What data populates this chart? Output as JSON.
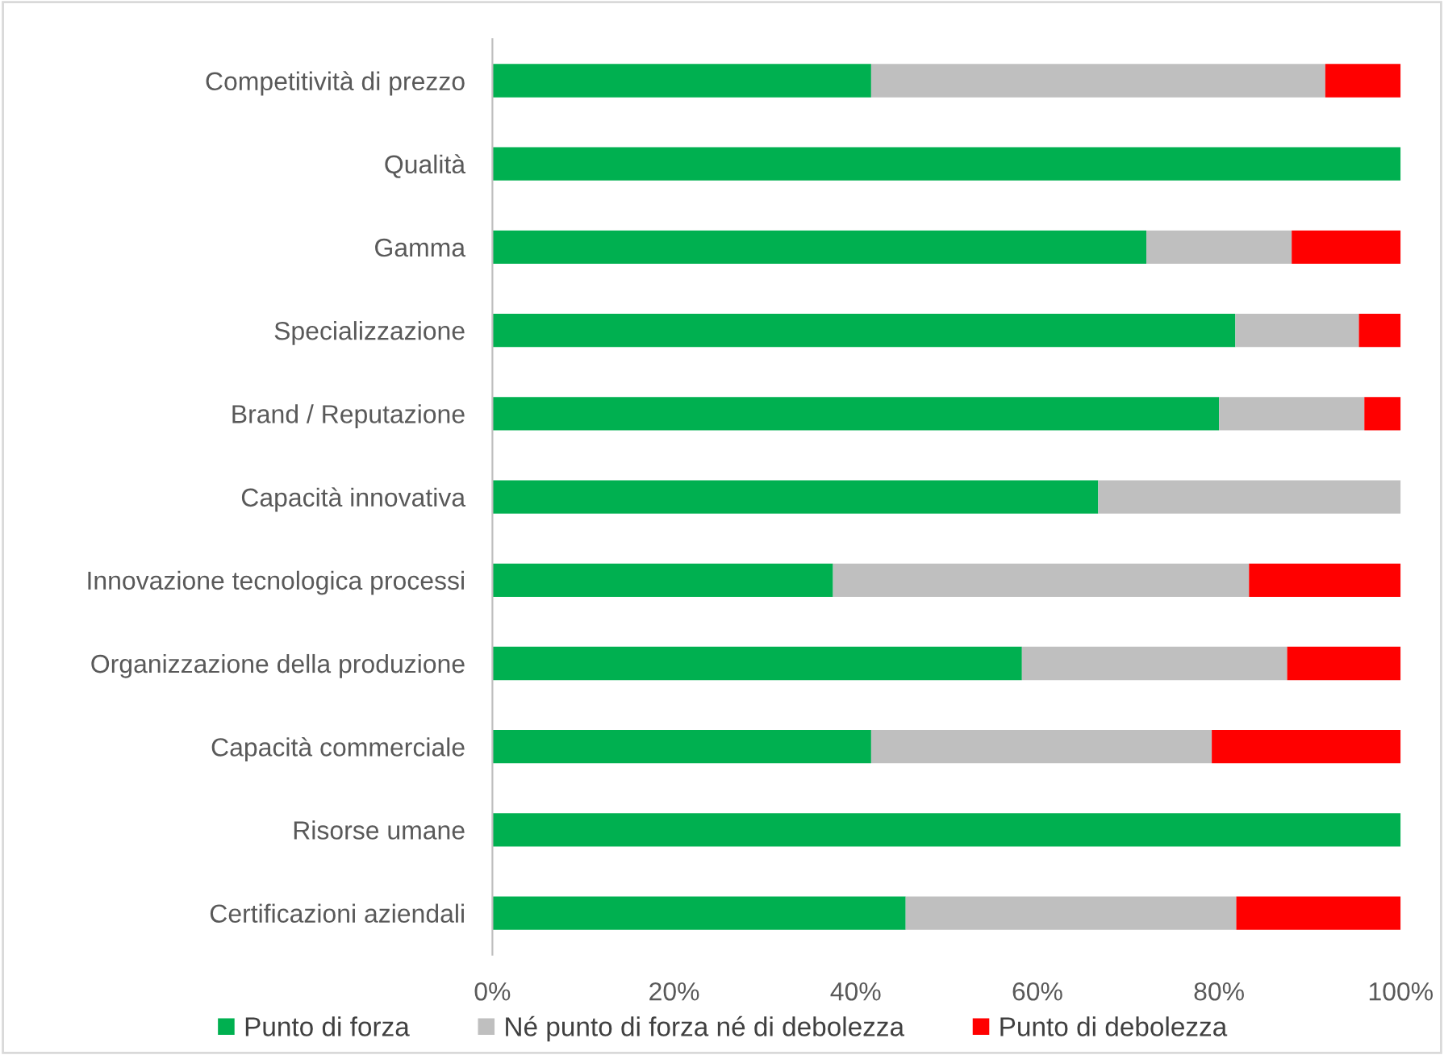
{
  "chart_data": {
    "type": "bar",
    "orientation": "horizontal",
    "stacked": true,
    "categories": [
      "Competitività di prezzo",
      "Qualità",
      "Gamma",
      "Specializzazione",
      "Brand / Reputazione",
      "Capacità innovativa",
      "Innovazione tecnologica processi",
      "Organizzazione della produzione",
      "Capacità commerciale",
      "Risorse umane",
      "Certificazioni aziendali"
    ],
    "series": [
      {
        "name": "Punto di forza",
        "color": "#00b050",
        "values": [
          41.7,
          100,
          72,
          81.8,
          80,
          66.7,
          37.5,
          58.3,
          41.7,
          100,
          45.5
        ]
      },
      {
        "name": "Né punto di forza né di debolezza",
        "color": "#bfbfbf",
        "values": [
          50,
          0,
          16,
          13.6,
          16,
          33.3,
          45.8,
          29.2,
          37.5,
          0,
          36.4
        ]
      },
      {
        "name": "Punto di debolezza",
        "color": "#ff0000",
        "values": [
          8.3,
          0,
          12,
          4.6,
          4,
          0,
          16.7,
          12.5,
          20.8,
          0,
          18.1
        ]
      }
    ],
    "xlim": [
      0,
      100
    ],
    "xticks": [
      {
        "value": 0,
        "label": "0%"
      },
      {
        "value": 20,
        "label": "20%"
      },
      {
        "value": 40,
        "label": "40%"
      },
      {
        "value": 60,
        "label": "60%"
      },
      {
        "value": 80,
        "label": "80%"
      },
      {
        "value": 100,
        "label": "100%"
      }
    ],
    "grid": false,
    "legend": "bottom"
  }
}
